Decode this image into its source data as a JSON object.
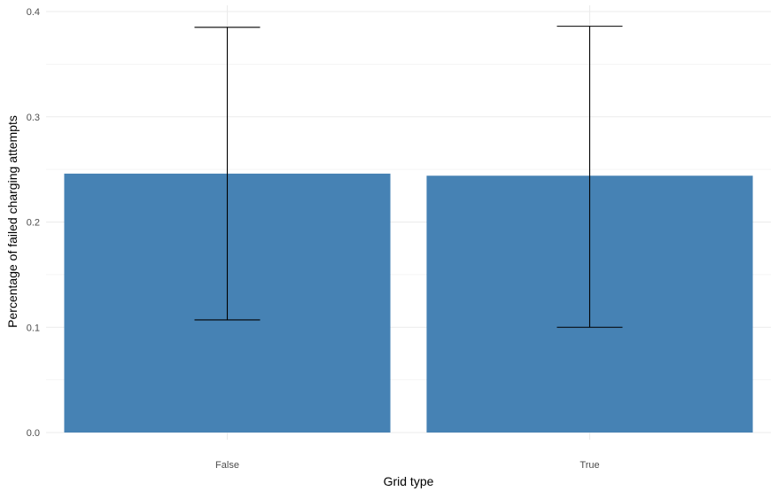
{
  "chart_data": {
    "type": "bar",
    "categories": [
      "False",
      "True"
    ],
    "values": [
      0.246,
      0.244
    ],
    "error_lower": [
      0.107,
      0.1
    ],
    "error_upper": [
      0.385,
      0.386
    ],
    "xlabel": "Grid type",
    "ylabel": "Percentage of failed charging attempts",
    "ylim": [
      0.0,
      0.4
    ],
    "yticks": [
      0.0,
      0.1,
      0.2,
      0.3,
      0.4
    ],
    "ytick_labels": [
      "0.0",
      "0.1",
      "0.2",
      "0.3",
      "0.4"
    ],
    "grid": true,
    "legend": "none",
    "colors": {
      "bar": "#4682b4",
      "errorbar": "#000000",
      "grid": "#ebebeb",
      "tick_text": "#4d4d4d",
      "axis_title": "#000000"
    }
  }
}
